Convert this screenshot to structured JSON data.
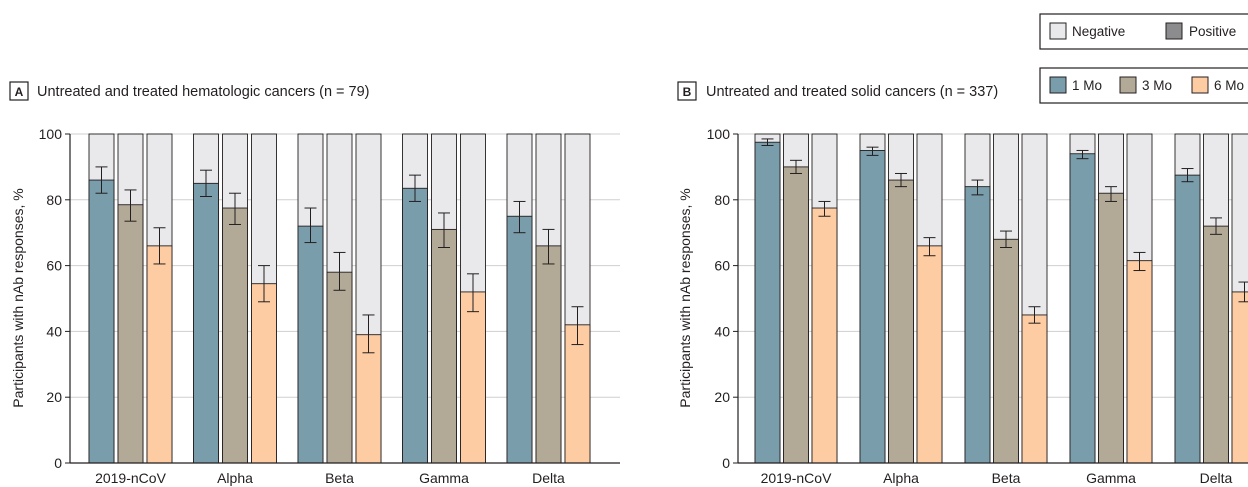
{
  "colors": {
    "one_month": "#7a9dab",
    "three_month": "#b3a997",
    "six_month": "#fdcca3",
    "negative": "#e9e9eb",
    "positive": "#8c8c8e",
    "stroke": "#231f20",
    "gridline": "#cfcfd1"
  },
  "legend_status": {
    "negative_label": "Negative",
    "positive_label": "Positive"
  },
  "legend_time": {
    "one_month_label": "1 Mo",
    "three_month_label": "3 Mo",
    "six_month_label": "6 Mo"
  },
  "chart_data": [
    {
      "type": "bar",
      "panel": "A",
      "title": "Untreated and treated hematologic cancers (n = 79)",
      "ylabel": "Participants with nAb responses, %",
      "xlabel": "",
      "ylim": [
        0,
        100
      ],
      "yticks": [
        "0",
        "20",
        "40",
        "60",
        "80",
        "100"
      ],
      "grid": "horizontal",
      "categories": [
        "2019-nCoV",
        "Alpha",
        "Beta",
        "Gamma",
        "Delta"
      ],
      "series": [
        {
          "name": "1 Mo",
          "values": [
            86,
            85,
            72,
            83.5,
            75
          ],
          "error_low": [
            82,
            81,
            67,
            79.5,
            70
          ],
          "error_high": [
            90,
            89,
            77.5,
            87.5,
            79.5
          ]
        },
        {
          "name": "3 Mo",
          "values": [
            78.5,
            77.5,
            58,
            71,
            66
          ],
          "error_low": [
            73.5,
            72.5,
            52.5,
            65.5,
            60.5
          ],
          "error_high": [
            83,
            82,
            64,
            76,
            71
          ]
        },
        {
          "name": "6 Mo",
          "values": [
            66,
            54.5,
            39,
            52,
            42
          ],
          "error_low": [
            60.5,
            49,
            33.5,
            46,
            36
          ],
          "error_high": [
            71.5,
            60,
            45,
            57.5,
            47.5
          ]
        }
      ]
    },
    {
      "type": "bar",
      "panel": "B",
      "title": "Untreated and treated solid cancers (n = 337)",
      "ylabel": "Participants with nAb responses, %",
      "xlabel": "",
      "ylim": [
        0,
        100
      ],
      "yticks": [
        "0",
        "20",
        "40",
        "60",
        "80",
        "100"
      ],
      "grid": "horizontal",
      "categories": [
        "2019-nCoV",
        "Alpha",
        "Beta",
        "Gamma",
        "Delta"
      ],
      "series": [
        {
          "name": "1 Mo",
          "values": [
            97.5,
            95,
            84,
            94,
            87.5
          ],
          "error_low": [
            96.5,
            93.5,
            81.5,
            92.5,
            85.5
          ],
          "error_high": [
            98.5,
            96,
            86,
            95,
            89.5
          ]
        },
        {
          "name": "3 Mo",
          "values": [
            90,
            86,
            68,
            82,
            72
          ],
          "error_low": [
            88,
            84,
            65.5,
            79.5,
            69.5
          ],
          "error_high": [
            92,
            88,
            70.5,
            84,
            74.5
          ]
        },
        {
          "name": "6 Mo",
          "values": [
            77.5,
            66,
            45,
            61.5,
            52
          ],
          "error_low": [
            75,
            63,
            42.5,
            58.5,
            49
          ],
          "error_high": [
            79.5,
            68.5,
            47.5,
            64,
            55
          ]
        }
      ]
    }
  ]
}
